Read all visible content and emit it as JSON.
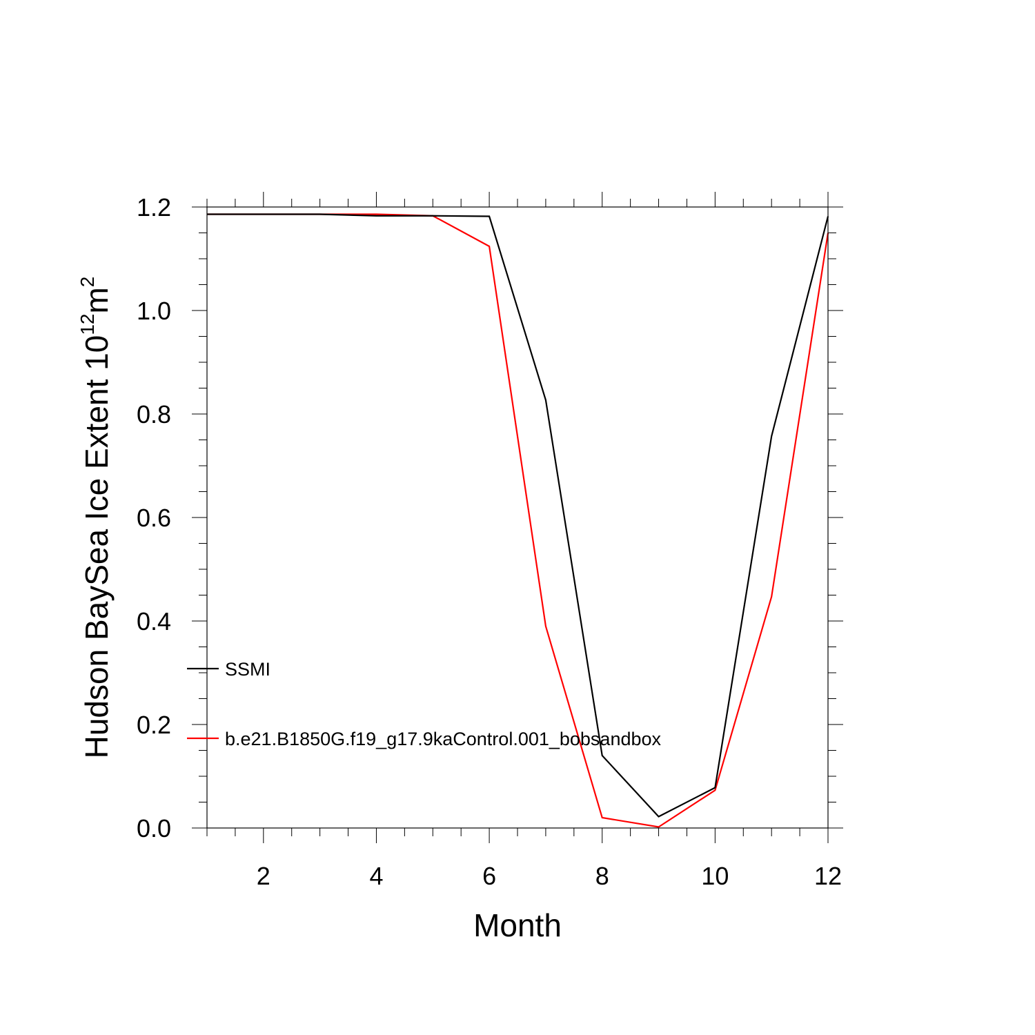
{
  "chart_data": {
    "type": "line",
    "title": "",
    "xlabel": "Month",
    "ylabel": {
      "text": "Hudson BaySea Ice Extent 10",
      "exponent": "12",
      "unit": "m",
      "unit_exponent": "2"
    },
    "xlim": [
      1,
      12
    ],
    "ylim": [
      0,
      1.2
    ],
    "x_ticks": [
      2,
      4,
      6,
      8,
      10,
      12
    ],
    "y_ticks": [
      0.0,
      0.2,
      0.4,
      0.6,
      0.8,
      1.0,
      1.2
    ],
    "y_tick_labels": [
      "0.0",
      "0.2",
      "0.4",
      "0.6",
      "0.8",
      "1.0",
      "1.2"
    ],
    "x_tick_labels": [
      "2",
      "4",
      "6",
      "8",
      "10",
      "12"
    ],
    "grid": false,
    "legend_position": "lower-left",
    "x": [
      1,
      2,
      3,
      4,
      5,
      6,
      7,
      8,
      9,
      10,
      11,
      12
    ],
    "series": [
      {
        "name": "SSMI",
        "color": "#000000",
        "values": [
          1.186,
          1.186,
          1.186,
          1.183,
          1.183,
          1.182,
          0.827,
          0.14,
          0.022,
          0.078,
          0.757,
          1.182
        ]
      },
      {
        "name": "b.e21.B1850G.f19_g17.9kaControl.001_bobsandbox",
        "color": "#ff0000",
        "values": [
          1.186,
          1.186,
          1.186,
          1.186,
          1.183,
          1.124,
          0.39,
          0.02,
          0.002,
          0.073,
          0.447,
          1.15
        ]
      }
    ]
  }
}
